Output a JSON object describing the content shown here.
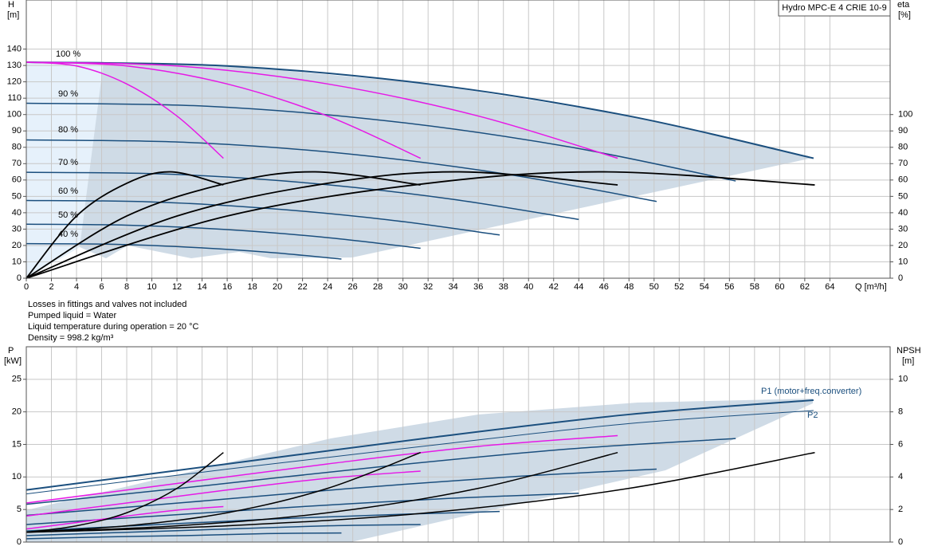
{
  "chart_data": [
    {
      "type": "line",
      "title": "Hydro MPC-E 4 CRIE 10-9",
      "ylabel": "H",
      "yunit": "[m]",
      "y2label": "eta",
      "y2unit": "[%]",
      "xlabel": "Q [m³/h]",
      "annotations": [
        "100 %",
        "90 %",
        "80 %",
        "70 %",
        "60 %",
        "50 %",
        "40 %"
      ],
      "notes": [
        "Losses in fittings and valves not included",
        "Pumped liquid = Water",
        "Liquid temperature during operation = 20 °C",
        "Density = 998.2 kg/m³"
      ],
      "xlim": [
        0,
        68.8
      ],
      "xticks": [
        0,
        2,
        4,
        6,
        8,
        10,
        12,
        14,
        16,
        18,
        20,
        22,
        24,
        26,
        28,
        30,
        32,
        34,
        36,
        38,
        40,
        42,
        44,
        46,
        48,
        50,
        52,
        54,
        56,
        58,
        60,
        62,
        64
      ],
      "ylim": [
        0,
        170
      ],
      "yticks": [
        0,
        10,
        20,
        30,
        40,
        50,
        60,
        70,
        80,
        90,
        100,
        110,
        120,
        130,
        140
      ],
      "y2lim": [
        0,
        170
      ],
      "y2ticks": [
        0,
        10,
        20,
        30,
        40,
        50,
        60,
        70,
        80,
        90,
        100
      ],
      "grid": true,
      "series": [
        {
          "color": "#1b4f7e",
          "width": 2,
          "x": [
            0,
            16,
            32,
            48,
            62.7
          ],
          "values": [
            132,
            129.7,
            118.7,
            99.1,
            73.3
          ]
        },
        {
          "color": "#1b4f7e",
          "width": 1.5,
          "x": [
            0,
            14.4,
            28.8,
            43.2,
            56.5
          ],
          "values": [
            106.9,
            105.1,
            96.1,
            80.3,
            59.4
          ]
        },
        {
          "color": "#1b4f7e",
          "width": 1.5,
          "x": [
            0,
            12.8,
            25.6,
            38.4,
            50.2
          ],
          "values": [
            84.5,
            83,
            76,
            63.4,
            46.9
          ]
        },
        {
          "color": "#1b4f7e",
          "width": 1.5,
          "x": [
            0,
            11.2,
            22.4,
            33.6,
            44
          ],
          "values": [
            64.7,
            63.6,
            58.2,
            48.6,
            35.9
          ]
        },
        {
          "color": "#1b4f7e",
          "width": 1.5,
          "x": [
            0,
            9.6,
            19.2,
            28.8,
            37.7
          ],
          "values": [
            47.5,
            46.7,
            42.7,
            35.7,
            26.4
          ]
        },
        {
          "color": "#1b4f7e",
          "width": 1.5,
          "x": [
            0,
            8,
            16,
            24,
            31.4
          ],
          "values": [
            33,
            32.4,
            29.7,
            24.8,
            18.3
          ]
        },
        {
          "color": "#1b4f7e",
          "width": 1.5,
          "x": [
            0,
            6.4,
            12.8,
            19.2,
            25.1
          ],
          "values": [
            21.1,
            20.8,
            19,
            15.9,
            11.7
          ]
        },
        {
          "color": "#e619e6",
          "width": 1.5,
          "x": [
            0,
            4,
            8,
            12,
            15.7
          ],
          "values": [
            132,
            129.7,
            118.7,
            99.1,
            73.3
          ]
        },
        {
          "color": "#e619e6",
          "width": 1.5,
          "x": [
            0,
            8,
            16,
            24,
            31.4
          ],
          "values": [
            132,
            129.7,
            118.7,
            99.1,
            73.3
          ]
        },
        {
          "color": "#e619e6",
          "width": 1.5,
          "x": [
            0,
            12,
            24,
            36,
            47.1
          ],
          "values": [
            132,
            129.7,
            118.7,
            99.1,
            73.3
          ]
        },
        {
          "color": "#000000",
          "width": 1.8,
          "axis": "y2",
          "x": [
            0,
            4,
            8,
            11.5,
            15.7
          ],
          "values": [
            0,
            38,
            58,
            65,
            57
          ]
        },
        {
          "color": "#000000",
          "width": 1.8,
          "axis": "y2",
          "x": [
            0,
            8,
            16,
            23,
            31.4
          ],
          "values": [
            0,
            38,
            58,
            65,
            57
          ]
        },
        {
          "color": "#000000",
          "width": 1.8,
          "axis": "y2",
          "x": [
            0,
            12,
            24,
            34.5,
            47.1
          ],
          "values": [
            0,
            38,
            58,
            65,
            57
          ]
        },
        {
          "color": "#000000",
          "width": 1.8,
          "axis": "y2",
          "x": [
            0,
            16,
            32,
            46,
            62.8
          ],
          "values": [
            0,
            38,
            58,
            65,
            57
          ]
        }
      ]
    },
    {
      "type": "line",
      "ylabel": "P",
      "yunit": "[kW]",
      "y2label": "NPSH",
      "y2unit": "[m]",
      "annotations": [
        "P1 (motor+freq.converter)",
        "P2"
      ],
      "xlim": [
        0,
        68.8
      ],
      "ylim": [
        0,
        30
      ],
      "yticks": [
        0,
        5,
        10,
        15,
        20,
        25
      ],
      "y2lim": [
        0,
        12
      ],
      "y2ticks": [
        0,
        2,
        4,
        6,
        8,
        10
      ],
      "grid": true,
      "series": [
        {
          "color": "#1b4f7e",
          "width": 2,
          "x": [
            0,
            16,
            32,
            48,
            62.7
          ],
          "values": [
            8,
            12,
            16,
            19.6,
            21.8
          ]
        },
        {
          "color": "#1b4f7e",
          "width": 1,
          "x": [
            0,
            16,
            32,
            48,
            62.7
          ],
          "values": [
            7.4,
            11.2,
            14.8,
            18.2,
            20.2
          ]
        },
        {
          "color": "#1b4f7e",
          "width": 1.5,
          "x": [
            0,
            14.4,
            28.8,
            43.2,
            56.5
          ],
          "values": [
            5.8,
            8.7,
            11.7,
            14.3,
            15.9
          ]
        },
        {
          "color": "#1b4f7e",
          "width": 1.5,
          "x": [
            0,
            12.8,
            25.6,
            38.4,
            50.2
          ],
          "values": [
            4.1,
            6.1,
            8.2,
            10,
            11.2
          ]
        },
        {
          "color": "#1b4f7e",
          "width": 1.5,
          "x": [
            0,
            11.2,
            22.4,
            33.6,
            44
          ],
          "values": [
            2.7,
            4.1,
            5.5,
            6.7,
            7.5
          ]
        },
        {
          "color": "#1b4f7e",
          "width": 1.5,
          "x": [
            0,
            9.6,
            19.2,
            28.8,
            37.7
          ],
          "values": [
            1.7,
            2.6,
            3.5,
            4.2,
            4.7
          ]
        },
        {
          "color": "#1b4f7e",
          "width": 1.5,
          "x": [
            0,
            8,
            16,
            24,
            31.4
          ],
          "values": [
            1,
            1.5,
            2,
            2.5,
            2.7
          ]
        },
        {
          "color": "#1b4f7e",
          "width": 1.5,
          "x": [
            0,
            6.4,
            12.8,
            19.2,
            25.1
          ],
          "values": [
            0.5,
            0.8,
            1,
            1.3,
            1.4
          ]
        },
        {
          "color": "#e619e6",
          "width": 1.5,
          "x": [
            0,
            4,
            8,
            12,
            15.7
          ],
          "values": [
            2,
            3,
            4,
            4.9,
            5.45
          ]
        },
        {
          "color": "#e619e6",
          "width": 1.5,
          "x": [
            0,
            8,
            16,
            24,
            31.4
          ],
          "values": [
            4,
            6,
            8,
            9.8,
            10.9
          ]
        },
        {
          "color": "#e619e6",
          "width": 1.5,
          "x": [
            0,
            12,
            24,
            36,
            47.1
          ],
          "values": [
            6,
            9,
            12,
            14.7,
            16.35
          ]
        },
        {
          "color": "#000000",
          "width": 1.5,
          "axis": "y2",
          "x": [
            0,
            4,
            8,
            12,
            15.7
          ],
          "values": [
            0.6,
            1,
            1.8,
            3.3,
            5.5
          ]
        },
        {
          "color": "#000000",
          "width": 1.5,
          "axis": "y2",
          "x": [
            0,
            8,
            16,
            24,
            31.4
          ],
          "values": [
            0.6,
            1,
            1.8,
            3.3,
            5.5
          ]
        },
        {
          "color": "#000000",
          "width": 1.5,
          "axis": "y2",
          "x": [
            0,
            12,
            24,
            36,
            47.1
          ],
          "values": [
            0.6,
            1,
            1.8,
            3.3,
            5.5
          ]
        },
        {
          "color": "#000000",
          "width": 1.5,
          "axis": "y2",
          "x": [
            0,
            16,
            32,
            48,
            62.8
          ],
          "values": [
            0.6,
            1,
            1.8,
            3.3,
            5.5
          ]
        }
      ]
    }
  ]
}
